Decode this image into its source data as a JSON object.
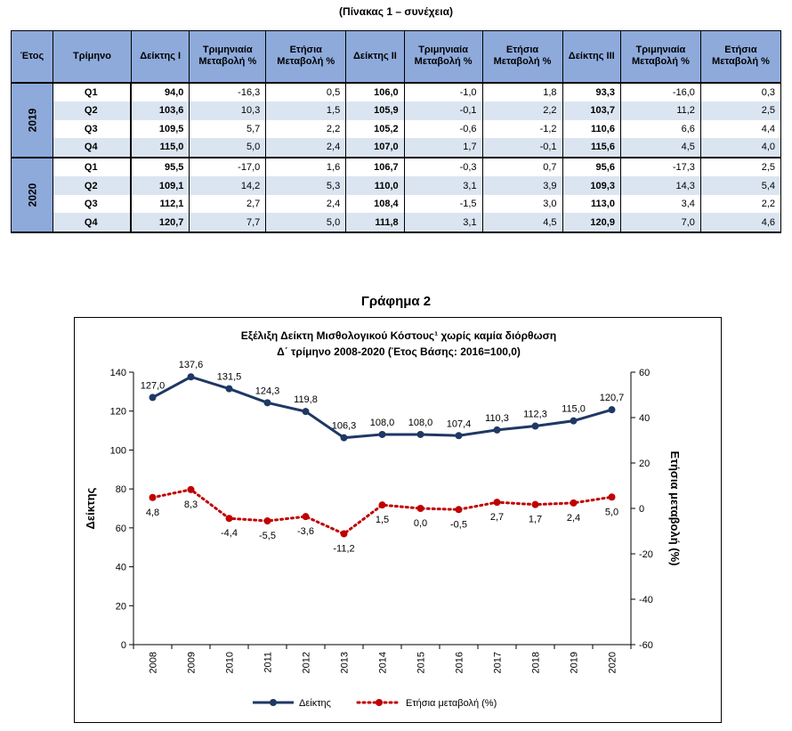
{
  "table": {
    "caption": "(Πίνακας 1 – συνέχεια)",
    "headers": [
      "Έτος",
      "Τρίμηνο",
      "Δείκτης Ι",
      "Τριμηνιαία Μεταβολή %",
      "Ετήσια Μεταβολή %",
      "Δείκτης ΙΙ",
      "Τριμηνιαία Μεταβολή %",
      "Ετήσια Μεταβολή %",
      "Δείκτης ΙΙΙ",
      "Τριμηνιαία Μεταβολή %",
      "Ετήσια Μεταβολή %"
    ],
    "years": [
      {
        "year": "2019",
        "rows": [
          [
            "Q1",
            "94,0",
            "-16,3",
            "0,5",
            "106,0",
            "-1,0",
            "1,8",
            "93,3",
            "-16,0",
            "0,3"
          ],
          [
            "Q2",
            "103,6",
            "10,3",
            "1,5",
            "105,9",
            "-0,1",
            "2,2",
            "103,7",
            "11,2",
            "2,5"
          ],
          [
            "Q3",
            "109,5",
            "5,7",
            "2,2",
            "105,2",
            "-0,6",
            "-1,2",
            "110,6",
            "6,6",
            "4,4"
          ],
          [
            "Q4",
            "115,0",
            "5,0",
            "2,4",
            "107,0",
            "1,7",
            "-0,1",
            "115,6",
            "4,5",
            "4,0"
          ]
        ]
      },
      {
        "year": "2020",
        "rows": [
          [
            "Q1",
            "95,5",
            "-17,0",
            "1,6",
            "106,7",
            "-0,3",
            "0,7",
            "95,6",
            "-17,3",
            "2,5"
          ],
          [
            "Q2",
            "109,1",
            "14,2",
            "5,3",
            "110,0",
            "3,1",
            "3,9",
            "109,3",
            "14,3",
            "5,4"
          ],
          [
            "Q3",
            "112,1",
            "2,7",
            "2,4",
            "108,4",
            "-1,5",
            "3,0",
            "113,0",
            "3,4",
            "2,2"
          ],
          [
            "Q4",
            "120,7",
            "7,7",
            "5,0",
            "111,8",
            "3,1",
            "4,5",
            "120,9",
            "7,0",
            "4,6"
          ]
        ]
      }
    ]
  },
  "chart_data": {
    "type": "line",
    "heading": "Γράφημα 2",
    "title": "Εξέλιξη Δείκτη Μισθολογικού Κόστους¹ χωρίς καμία διόρθωση",
    "subtitle": "Δ΄ τρίμηνο 2008-2020 (Έτος Βάσης: 2016=100,0)",
    "x": [
      "2008",
      "2009",
      "2010",
      "2011",
      "2012",
      "2013",
      "2014",
      "2015",
      "2016",
      "2017",
      "2018",
      "2019",
      "2020"
    ],
    "ylabel": "Δείκτης",
    "y2label": "Ετήσια μεταβολή (%)",
    "ylim": [
      0,
      140
    ],
    "yticks": [
      0,
      20,
      40,
      60,
      80,
      100,
      120,
      140
    ],
    "y2lim": [
      -60,
      60
    ],
    "y2ticks": [
      -60,
      -40,
      -20,
      0,
      20,
      40,
      60
    ],
    "legend_position": "bottom",
    "grid": false,
    "series": [
      {
        "name": "Δείκτης",
        "axis": "left",
        "color": "#1f3864",
        "style": "solid",
        "values": [
          127.0,
          137.6,
          131.5,
          124.3,
          119.8,
          106.3,
          108.0,
          108.0,
          107.4,
          110.3,
          112.3,
          115.0,
          120.7
        ],
        "labels": [
          "127,0",
          "137,6",
          "131,5",
          "124,3",
          "119,8",
          "106,3",
          "108,0",
          "108,0",
          "107,4",
          "110,3",
          "112,3",
          "115,0",
          "120,7"
        ]
      },
      {
        "name": "Ετήσια μεταβολή (%)",
        "axis": "right",
        "color": "#c00000",
        "style": "dotted",
        "values": [
          4.8,
          8.3,
          -4.4,
          -5.5,
          -3.6,
          -11.2,
          1.5,
          0.0,
          -0.5,
          2.7,
          1.7,
          2.4,
          5.0
        ],
        "labels": [
          "4,8",
          "8,3",
          "-4,4",
          "-5,5",
          "-3,6",
          "-11,2",
          "1,5",
          "0,0",
          "-0,5",
          "2,7",
          "1,7",
          "2,4",
          "5,0"
        ]
      }
    ]
  }
}
